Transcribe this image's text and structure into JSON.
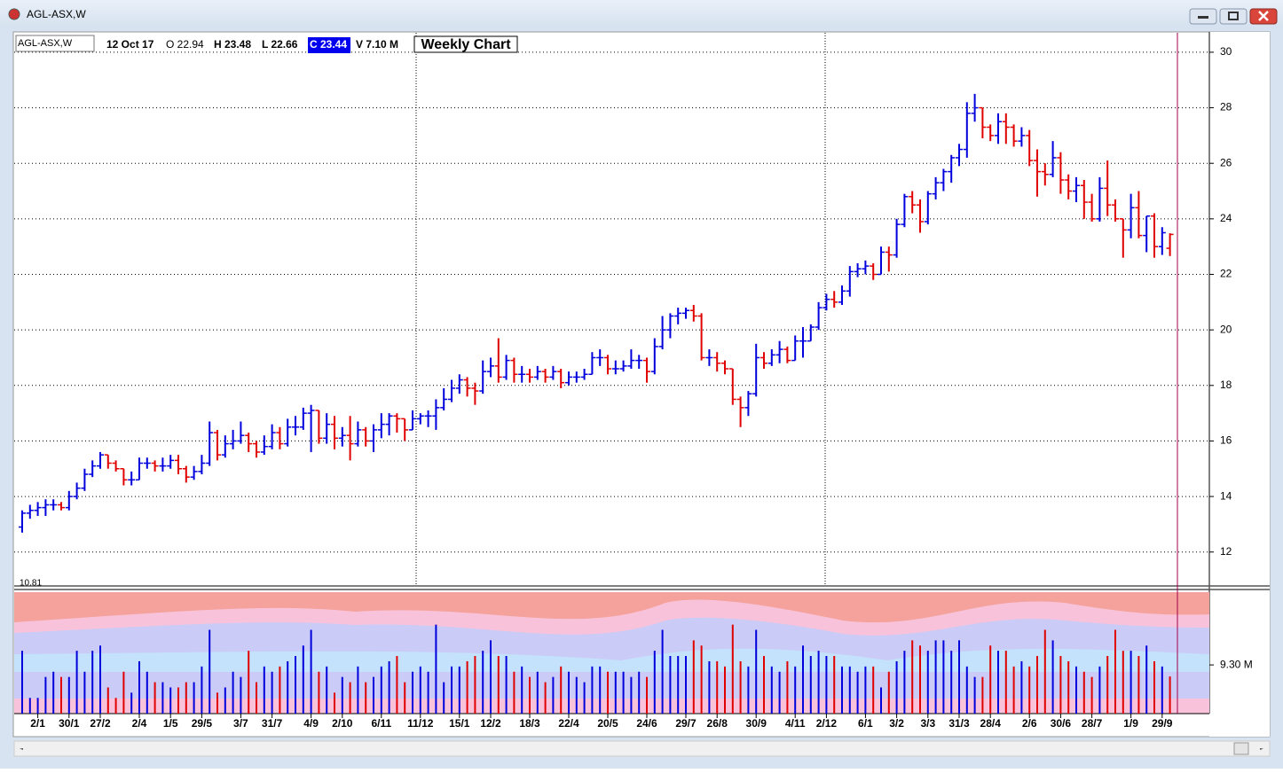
{
  "window_title": "AGL-ASX,W",
  "header": {
    "symbol": "AGL-ASX,W",
    "date": "12 Oct 17",
    "open": "O 22.94",
    "high": "H 23.48",
    "low": "L 22.66",
    "close": "C 23.44",
    "volume": "V 7.10 M",
    "chart_label": "Weekly Chart"
  },
  "chart_data": {
    "type": "ohlc",
    "up_color": "#0000dd",
    "down_color": "#e00000",
    "grid": true,
    "ylim": [
      10.81,
      30.7
    ],
    "yticks": [
      12,
      14,
      16,
      18,
      20,
      22,
      24,
      26,
      28,
      30
    ],
    "vlim": [
      0,
      23.2
    ],
    "vticks": [
      {
        "value": 9.3,
        "label": "9.30 M"
      }
    ],
    "xticks": [
      {
        "value": 2,
        "label": "2/1"
      },
      {
        "value": 6,
        "label": "30/1"
      },
      {
        "value": 10,
        "label": "27/2"
      },
      {
        "value": 15,
        "label": "2/4"
      },
      {
        "value": 19,
        "label": "1/5"
      },
      {
        "value": 23,
        "label": "29/5"
      },
      {
        "value": 28,
        "label": "3/7"
      },
      {
        "value": 32,
        "label": "31/7"
      },
      {
        "value": 37,
        "label": "4/9"
      },
      {
        "value": 41,
        "label": "2/10"
      },
      {
        "value": 46,
        "label": "6/11"
      },
      {
        "value": 51,
        "label": "11/12"
      },
      {
        "value": 56,
        "label": "15/1"
      },
      {
        "value": 60,
        "label": "12/2"
      },
      {
        "value": 65,
        "label": "18/3"
      },
      {
        "value": 70,
        "label": "22/4"
      },
      {
        "value": 75,
        "label": "20/5"
      },
      {
        "value": 80,
        "label": "24/6"
      },
      {
        "value": 85,
        "label": "29/7"
      },
      {
        "value": 89,
        "label": "26/8"
      },
      {
        "value": 94,
        "label": "30/9"
      },
      {
        "value": 99,
        "label": "4/11"
      },
      {
        "value": 103,
        "label": "2/12"
      },
      {
        "value": 108,
        "label": "6/1"
      },
      {
        "value": 112,
        "label": "3/2"
      },
      {
        "value": 116,
        "label": "3/3"
      },
      {
        "value": 120,
        "label": "31/3"
      },
      {
        "value": 124,
        "label": "28/4"
      },
      {
        "value": 129,
        "label": "2/6"
      },
      {
        "value": 133,
        "label": "30/6"
      },
      {
        "value": 137,
        "label": "28/7"
      },
      {
        "value": 142,
        "label": "1/9"
      },
      {
        "value": 146,
        "label": "29/9"
      }
    ],
    "ohlc": [
      [
        12.9,
        13.5,
        12.7,
        13.4
      ],
      [
        13.4,
        13.7,
        13.2,
        13.5
      ],
      [
        13.5,
        13.8,
        13.3,
        13.6
      ],
      [
        13.6,
        13.9,
        13.3,
        13.7
      ],
      [
        13.7,
        13.9,
        13.5,
        13.7
      ],
      [
        13.7,
        13.8,
        13.5,
        13.6
      ],
      [
        13.6,
        14.2,
        13.5,
        14.0
      ],
      [
        14.0,
        14.5,
        13.9,
        14.3
      ],
      [
        14.3,
        15.0,
        14.2,
        14.8
      ],
      [
        14.8,
        15.3,
        14.7,
        15.1
      ],
      [
        15.1,
        15.6,
        15.0,
        15.5
      ],
      [
        15.5,
        15.5,
        15.0,
        15.2
      ],
      [
        15.2,
        15.3,
        14.9,
        15.0
      ],
      [
        15.0,
        15.0,
        14.4,
        14.6
      ],
      [
        14.6,
        14.9,
        14.4,
        14.6
      ],
      [
        14.6,
        15.4,
        14.6,
        15.2
      ],
      [
        15.2,
        15.4,
        15.0,
        15.2
      ],
      [
        15.2,
        15.3,
        14.9,
        15.1
      ],
      [
        15.1,
        15.4,
        14.9,
        15.1
      ],
      [
        15.1,
        15.5,
        15.0,
        15.3
      ],
      [
        15.3,
        15.5,
        14.8,
        15.0
      ],
      [
        15.0,
        15.1,
        14.5,
        14.7
      ],
      [
        14.7,
        15.1,
        14.6,
        14.9
      ],
      [
        14.9,
        15.5,
        14.8,
        15.2
      ],
      [
        15.2,
        16.7,
        15.1,
        16.3
      ],
      [
        16.3,
        16.4,
        15.3,
        15.5
      ],
      [
        15.5,
        16.2,
        15.4,
        15.9
      ],
      [
        15.9,
        16.4,
        15.7,
        16.0
      ],
      [
        16.0,
        16.7,
        15.9,
        16.2
      ],
      [
        16.2,
        16.3,
        15.6,
        15.9
      ],
      [
        15.9,
        16.0,
        15.4,
        15.6
      ],
      [
        15.6,
        16.2,
        15.5,
        15.8
      ],
      [
        15.8,
        16.6,
        15.7,
        16.3
      ],
      [
        16.3,
        16.5,
        15.7,
        15.9
      ],
      [
        15.9,
        16.8,
        15.8,
        16.5
      ],
      [
        16.5,
        16.9,
        16.2,
        16.5
      ],
      [
        16.5,
        17.2,
        16.4,
        17.0
      ],
      [
        17.0,
        17.3,
        15.6,
        17.1
      ],
      [
        17.1,
        17.1,
        15.9,
        16.1
      ],
      [
        16.1,
        17.0,
        15.9,
        16.6
      ],
      [
        16.6,
        16.9,
        15.7,
        16.1
      ],
      [
        16.1,
        16.5,
        15.8,
        16.2
      ],
      [
        16.2,
        16.9,
        15.3,
        15.9
      ],
      [
        15.9,
        16.7,
        15.8,
        16.4
      ],
      [
        16.4,
        16.5,
        15.8,
        16.0
      ],
      [
        16.0,
        16.6,
        15.6,
        16.4
      ],
      [
        16.4,
        17.0,
        16.1,
        16.6
      ],
      [
        16.6,
        17.0,
        16.2,
        16.9
      ],
      [
        16.9,
        17.0,
        16.3,
        16.8
      ],
      [
        16.8,
        16.8,
        16.0,
        16.4
      ],
      [
        16.4,
        17.1,
        16.4,
        16.8
      ],
      [
        16.8,
        17.0,
        16.6,
        16.9
      ],
      [
        16.9,
        17.1,
        16.5,
        16.9
      ],
      [
        16.9,
        17.5,
        16.4,
        17.2
      ],
      [
        17.2,
        17.9,
        17.1,
        17.5
      ],
      [
        17.5,
        18.2,
        17.4,
        17.9
      ],
      [
        17.9,
        18.4,
        17.7,
        18.2
      ],
      [
        18.2,
        18.3,
        17.6,
        17.9
      ],
      [
        17.9,
        18.1,
        17.3,
        17.8
      ],
      [
        17.8,
        18.9,
        17.7,
        18.5
      ],
      [
        18.5,
        19.0,
        18.3,
        18.7
      ],
      [
        18.7,
        19.7,
        18.1,
        18.3
      ],
      [
        18.3,
        19.1,
        18.2,
        18.9
      ],
      [
        18.9,
        19.0,
        18.1,
        18.4
      ],
      [
        18.4,
        18.7,
        18.1,
        18.4
      ],
      [
        18.4,
        18.6,
        18.1,
        18.3
      ],
      [
        18.3,
        18.7,
        18.2,
        18.5
      ],
      [
        18.5,
        18.6,
        18.1,
        18.3
      ],
      [
        18.3,
        18.7,
        18.2,
        18.5
      ],
      [
        18.5,
        18.6,
        17.9,
        18.1
      ],
      [
        18.1,
        18.5,
        18.0,
        18.3
      ],
      [
        18.3,
        18.5,
        18.1,
        18.3
      ],
      [
        18.3,
        18.6,
        18.2,
        18.4
      ],
      [
        18.4,
        19.2,
        18.4,
        19.0
      ],
      [
        19.0,
        19.3,
        18.7,
        19.0
      ],
      [
        19.0,
        19.1,
        18.4,
        18.6
      ],
      [
        18.6,
        18.9,
        18.4,
        18.6
      ],
      [
        18.6,
        18.9,
        18.5,
        18.7
      ],
      [
        18.7,
        19.3,
        18.6,
        18.9
      ],
      [
        18.9,
        19.1,
        18.6,
        18.9
      ],
      [
        18.9,
        19.0,
        18.1,
        18.5
      ],
      [
        18.5,
        19.7,
        18.4,
        19.4
      ],
      [
        19.4,
        20.5,
        19.3,
        20.0
      ],
      [
        20.0,
        20.6,
        19.7,
        20.5
      ],
      [
        20.5,
        20.8,
        20.2,
        20.6
      ],
      [
        20.6,
        20.8,
        20.4,
        20.7
      ],
      [
        20.7,
        20.9,
        20.3,
        20.5
      ],
      [
        20.5,
        20.6,
        18.9,
        19.0
      ],
      [
        19.0,
        19.3,
        18.7,
        19.0
      ],
      [
        19.0,
        19.2,
        18.5,
        18.8
      ],
      [
        18.8,
        18.9,
        18.4,
        18.6
      ],
      [
        18.6,
        18.6,
        17.3,
        17.5
      ],
      [
        17.5,
        17.6,
        16.5,
        17.2
      ],
      [
        17.2,
        17.8,
        16.9,
        17.7
      ],
      [
        17.7,
        19.5,
        17.6,
        19.0
      ],
      [
        19.0,
        19.2,
        18.6,
        18.8
      ],
      [
        18.8,
        19.3,
        18.7,
        19.1
      ],
      [
        19.1,
        19.6,
        18.8,
        19.3
      ],
      [
        19.3,
        19.4,
        18.8,
        18.9
      ],
      [
        18.9,
        19.8,
        18.9,
        19.6
      ],
      [
        19.6,
        20.1,
        19.0,
        19.6
      ],
      [
        19.6,
        20.2,
        19.6,
        20.1
      ],
      [
        20.1,
        21.0,
        20.0,
        20.8
      ],
      [
        20.8,
        21.3,
        20.7,
        21.1
      ],
      [
        21.1,
        21.4,
        20.8,
        21.0
      ],
      [
        21.0,
        21.6,
        20.9,
        21.4
      ],
      [
        21.4,
        22.3,
        21.2,
        22.1
      ],
      [
        22.1,
        22.4,
        21.9,
        22.2
      ],
      [
        22.2,
        22.5,
        22.0,
        22.3
      ],
      [
        22.3,
        22.4,
        21.8,
        22.0
      ],
      [
        22.0,
        23.0,
        22.0,
        22.8
      ],
      [
        22.8,
        23.0,
        22.1,
        22.7
      ],
      [
        22.7,
        24.0,
        22.6,
        23.8
      ],
      [
        23.8,
        24.9,
        23.7,
        24.8
      ],
      [
        24.8,
        25.0,
        24.2,
        24.5
      ],
      [
        24.5,
        24.7,
        23.5,
        23.9
      ],
      [
        23.9,
        25.0,
        23.8,
        24.9
      ],
      [
        24.9,
        25.5,
        24.7,
        25.3
      ],
      [
        25.3,
        25.8,
        25.0,
        25.7
      ],
      [
        25.7,
        26.3,
        25.3,
        26.2
      ],
      [
        26.2,
        26.7,
        25.9,
        26.5
      ],
      [
        26.5,
        28.2,
        26.2,
        27.8
      ],
      [
        27.8,
        28.5,
        27.5,
        28.0
      ],
      [
        28.0,
        28.0,
        26.9,
        27.3
      ],
      [
        27.3,
        27.4,
        26.8,
        27.0
      ],
      [
        27.0,
        27.8,
        26.7,
        27.5
      ],
      [
        27.5,
        27.8,
        26.7,
        27.3
      ],
      [
        27.3,
        27.4,
        26.6,
        26.8
      ],
      [
        26.8,
        27.3,
        26.6,
        27.0
      ],
      [
        27.0,
        27.2,
        25.9,
        26.1
      ],
      [
        26.1,
        26.5,
        24.8,
        25.7
      ],
      [
        25.7,
        26.0,
        25.2,
        25.6
      ],
      [
        25.6,
        26.8,
        25.5,
        26.2
      ],
      [
        26.2,
        26.4,
        24.9,
        25.4
      ],
      [
        25.4,
        25.6,
        24.7,
        25.0
      ],
      [
        25.0,
        25.5,
        24.6,
        25.2
      ],
      [
        25.2,
        25.4,
        24.0,
        24.6
      ],
      [
        24.6,
        24.9,
        23.9,
        24.0
      ],
      [
        24.0,
        25.5,
        23.9,
        25.1
      ],
      [
        25.1,
        26.1,
        24.1,
        24.5
      ],
      [
        24.5,
        24.7,
        23.9,
        24.0
      ],
      [
        24.0,
        24.0,
        22.6,
        23.6
      ],
      [
        23.6,
        24.9,
        23.3,
        24.4
      ],
      [
        24.4,
        25.0,
        23.3,
        23.4
      ],
      [
        23.4,
        24.1,
        22.8,
        24.1
      ],
      [
        24.1,
        24.2,
        22.6,
        23.0
      ],
      [
        23.0,
        23.7,
        22.7,
        23.5
      ],
      [
        22.94,
        23.48,
        22.66,
        23.44
      ]
    ],
    "volumes": [
      12,
      3,
      3,
      7,
      8,
      7,
      7,
      12,
      8,
      12,
      13,
      5,
      3,
      8,
      4,
      10,
      8,
      6,
      6,
      5,
      5,
      6,
      6,
      9,
      16,
      4,
      5,
      8,
      7,
      12,
      6,
      9,
      8,
      9,
      10,
      11,
      13,
      16,
      8,
      9,
      4,
      7,
      6,
      9,
      6,
      7,
      9,
      10,
      11,
      6,
      8,
      9,
      8,
      17,
      6,
      9,
      9,
      10,
      11,
      12,
      14,
      11,
      11,
      8,
      9,
      7,
      8,
      6,
      7,
      9,
      8,
      7,
      6,
      9,
      9,
      8,
      8,
      8,
      7,
      8,
      7,
      12,
      16,
      11,
      11,
      11,
      14,
      13,
      10,
      10,
      9,
      17,
      10,
      9,
      16,
      11,
      9,
      8,
      10,
      9,
      13,
      11,
      12,
      11,
      11,
      9,
      9,
      8,
      9,
      9,
      5,
      8,
      10,
      12,
      14,
      13,
      12,
      14,
      14,
      12,
      14,
      9,
      7,
      7,
      13,
      12,
      12,
      9,
      10,
      9,
      11,
      16,
      14,
      11,
      10,
      9,
      8,
      7,
      9,
      11,
      16,
      12,
      12,
      11,
      13,
      10,
      9,
      7.1
    ]
  }
}
